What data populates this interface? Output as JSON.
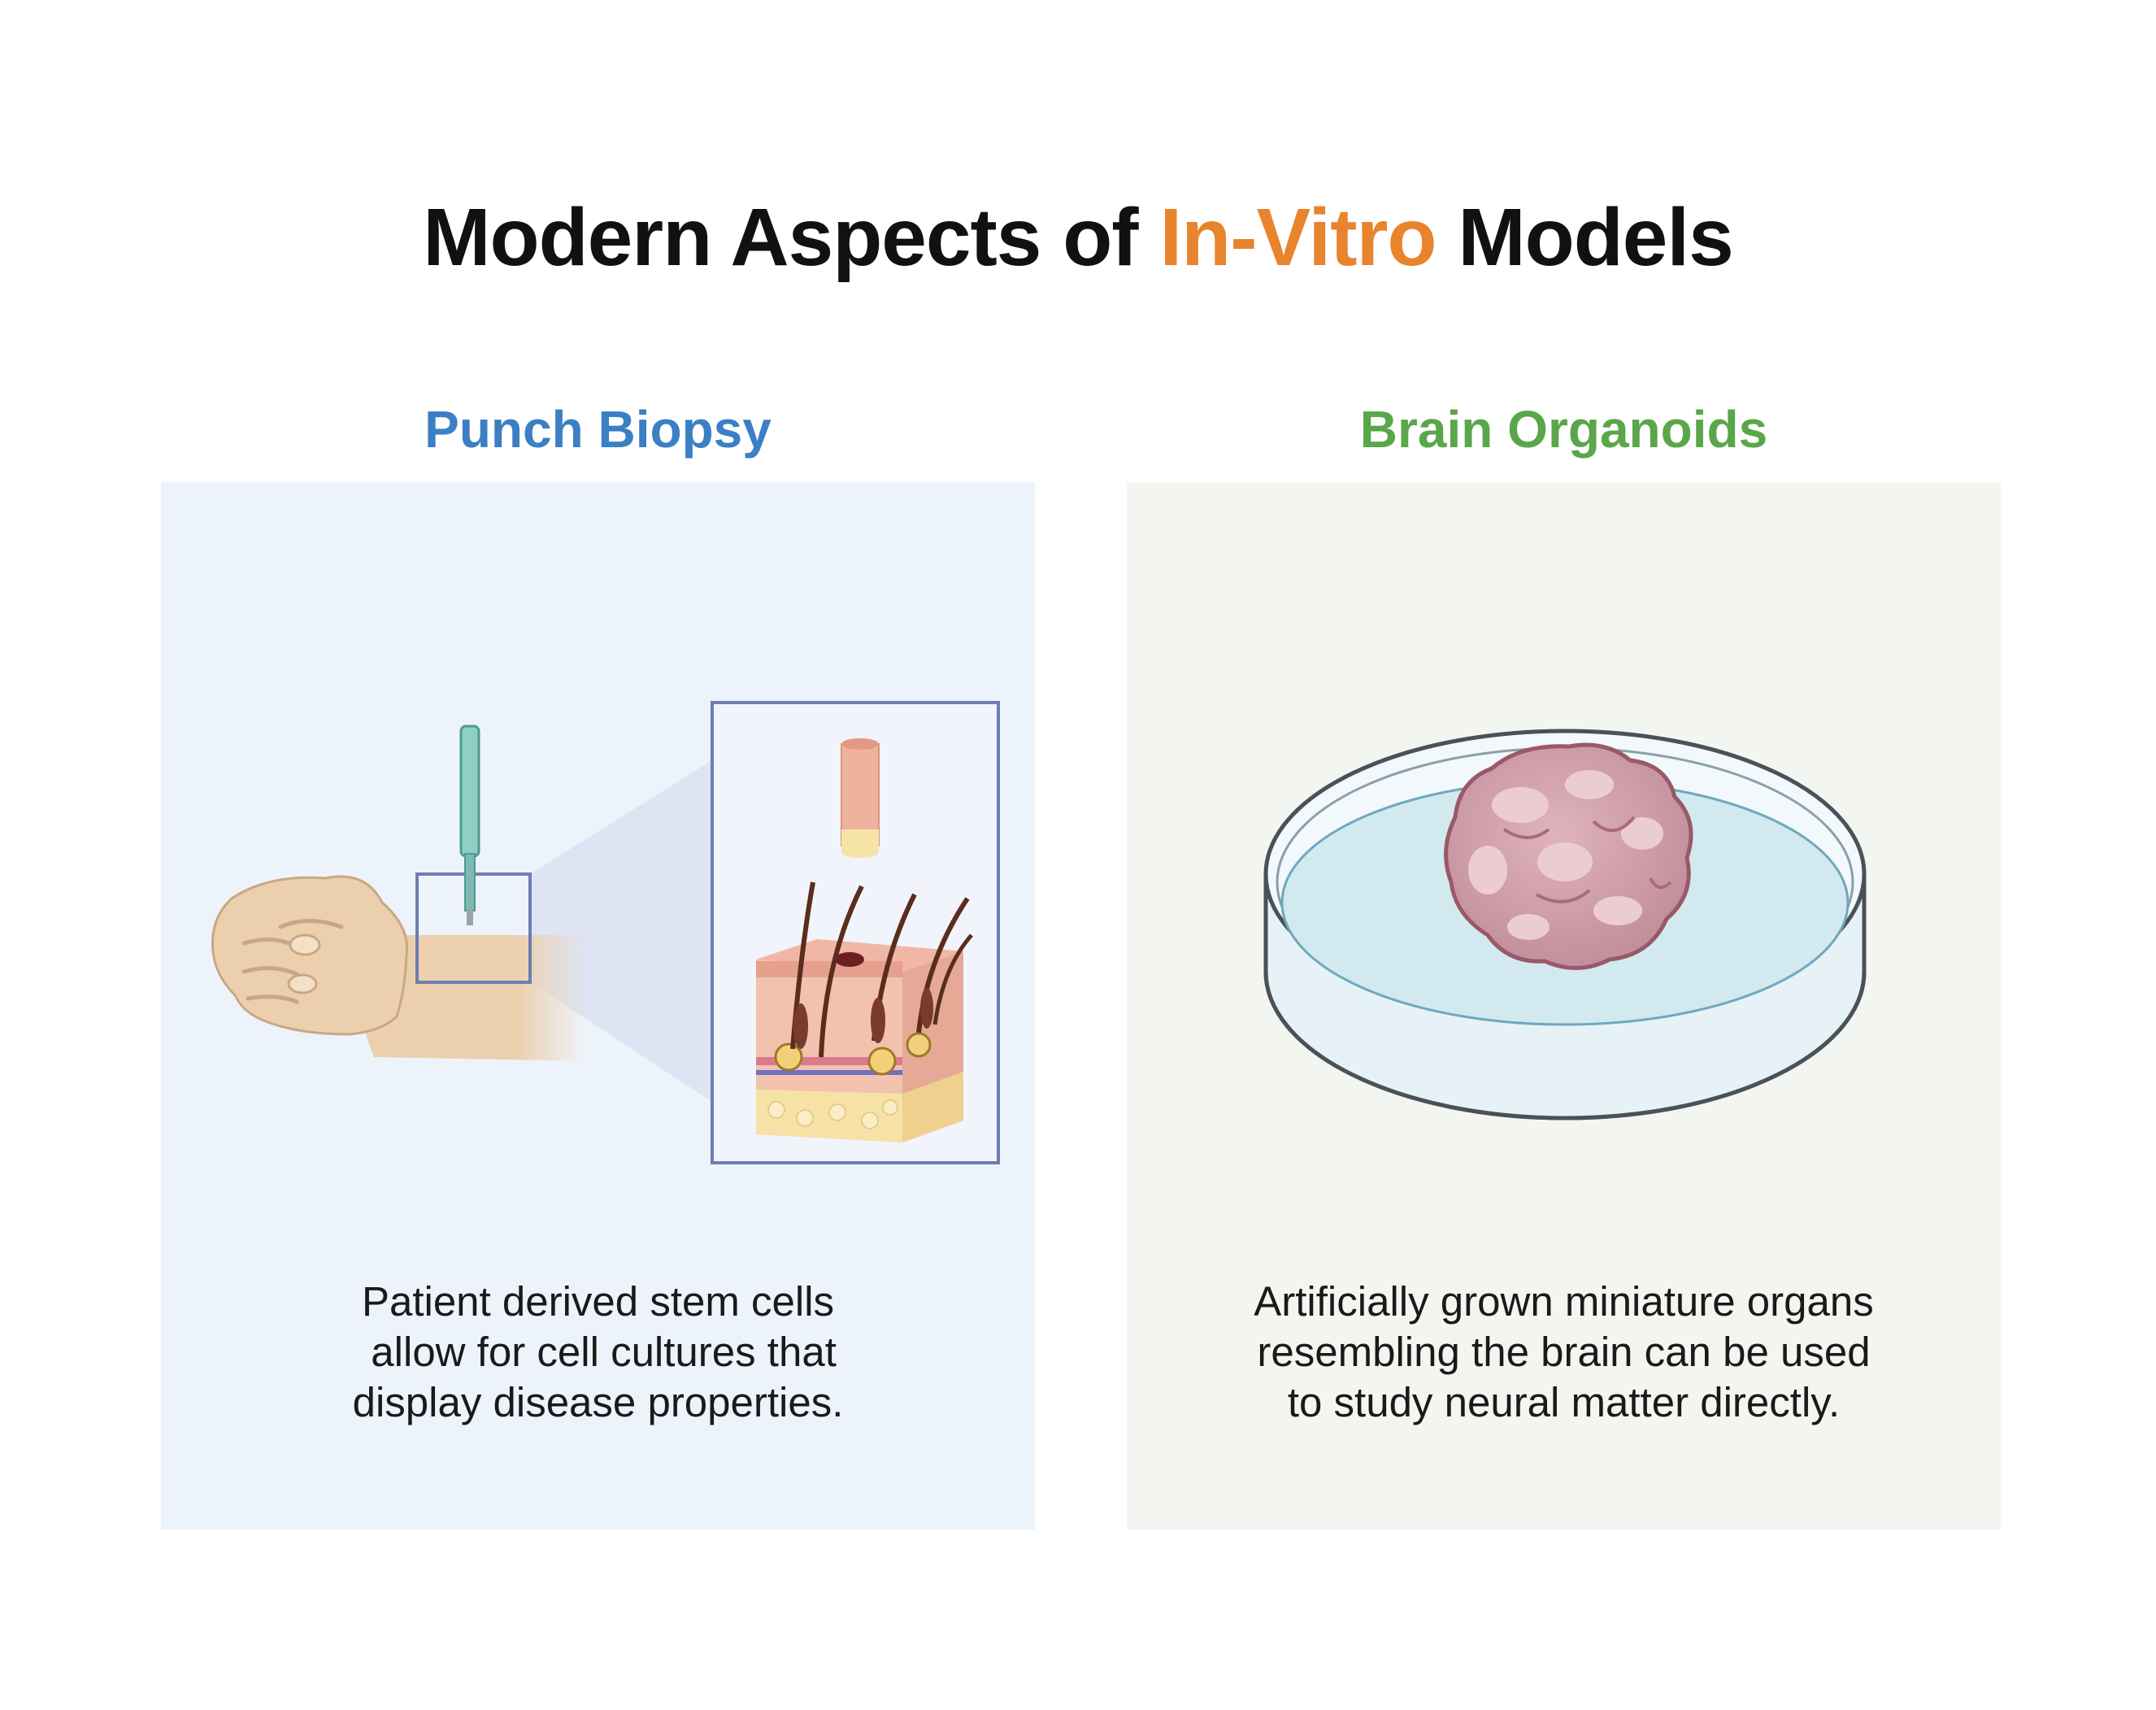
{
  "title": {
    "prefix": "Modern Aspects of ",
    "accent": "In-Vitro",
    "suffix": " Models"
  },
  "colors": {
    "accent": "#e8842d",
    "left_heading": "#3b7fc4",
    "right_heading": "#5aa64a"
  },
  "left_panel": {
    "heading": "Punch Biopsy",
    "caption_lines": [
      "Patient derived stem cells",
      " allow for cell cultures that",
      "display disease properties."
    ],
    "icons": [
      "hand-icon",
      "biopsy-punch-icon",
      "skin-core-sample-icon",
      "skin-cross-section-icon"
    ]
  },
  "right_panel": {
    "heading": "Brain Organoids",
    "caption_lines": [
      "Artificially grown miniature organs",
      "resembling the brain can be used",
      "to study neural matter directly."
    ],
    "icons": [
      "petri-dish-icon",
      "brain-organoid-icon"
    ]
  }
}
